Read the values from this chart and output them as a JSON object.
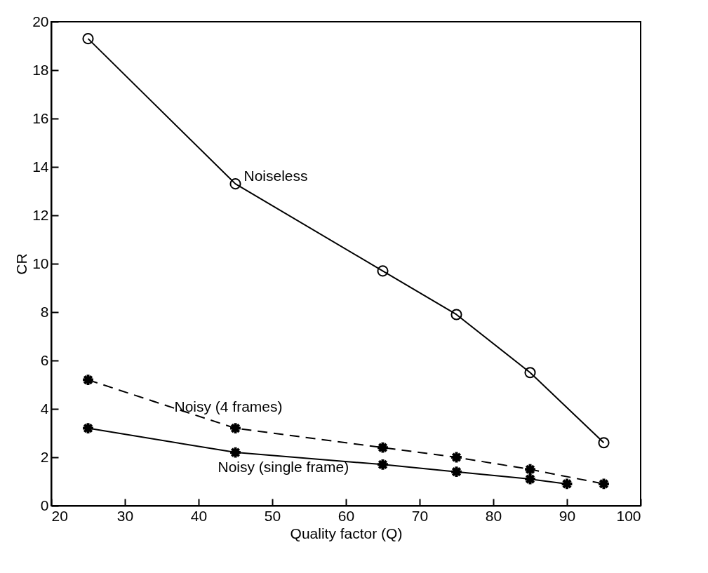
{
  "chart_data": {
    "type": "line",
    "xlabel": "Quality factor (Q)",
    "ylabel": "CR",
    "xlim": [
      20,
      100
    ],
    "xticks": [
      20,
      30,
      40,
      50,
      60,
      70,
      80,
      90,
      100
    ],
    "ylim": [
      0,
      20
    ],
    "yticks": [
      0,
      2,
      4,
      6,
      8,
      10,
      12,
      14,
      16,
      18,
      20
    ],
    "grid": false,
    "series": [
      {
        "name": "Noiseless",
        "color": "#000000",
        "marker": "circle",
        "line_style": "solid",
        "x": [
          25,
          45,
          65,
          75,
          85,
          95
        ],
        "values": [
          19.3,
          13.3,
          9.7,
          7.9,
          5.5,
          2.6
        ]
      },
      {
        "name": "Noisy (4 frames)",
        "color": "#000000",
        "marker": "cross",
        "line_style": "dashed",
        "x": [
          25,
          45,
          65,
          75,
          85,
          95
        ],
        "values": [
          5.2,
          3.2,
          2.4,
          2.0,
          1.5,
          0.9
        ]
      },
      {
        "name": "Noisy (single frame)",
        "color": "#000000",
        "marker": "cross",
        "line_style": "solid",
        "x": [
          25,
          45,
          65,
          75,
          85,
          90
        ],
        "values": [
          3.2,
          2.2,
          1.7,
          1.4,
          1.1,
          0.9
        ]
      }
    ]
  }
}
